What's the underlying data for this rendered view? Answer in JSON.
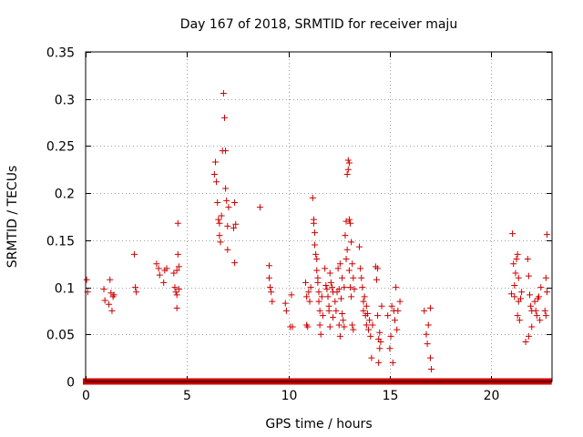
{
  "chart_data": {
    "type": "scatter",
    "title": "Day 167 of 2018, SRMTID for receiver maju",
    "xlabel": "GPS time / hours",
    "ylabel": "SRMTID / TECUs",
    "xlim": [
      0,
      23
    ],
    "ylim": [
      0,
      0.35
    ],
    "x_ticks": [
      0,
      5,
      10,
      15,
      20
    ],
    "x_tick_labels": [
      "0",
      "5",
      "10",
      "15",
      "20"
    ],
    "y_ticks": [
      0,
      0.05,
      0.1,
      0.15,
      0.2,
      0.25,
      0.3,
      0.35
    ],
    "y_tick_labels": [
      "0",
      "0.05",
      "0.1",
      "0.15",
      "0.2",
      "0.25",
      "0.3",
      "0.35"
    ],
    "grid": true,
    "marker": "+",
    "colors": {
      "series": "#cc0000",
      "grid": "#a0a0a0",
      "axis": "#000000"
    },
    "series": [
      {
        "name": "SRMTID",
        "points": [
          [
            0.05,
            0.108
          ],
          [
            0.1,
            0.095
          ],
          [
            0.9,
            0.098
          ],
          [
            0.95,
            0.086
          ],
          [
            1.15,
            0.082
          ],
          [
            1.2,
            0.108
          ],
          [
            1.25,
            0.094
          ],
          [
            1.3,
            0.075
          ],
          [
            1.35,
            0.09
          ],
          [
            1.4,
            0.092
          ],
          [
            2.4,
            0.135
          ],
          [
            2.45,
            0.1
          ],
          [
            2.5,
            0.095
          ],
          [
            3.5,
            0.125
          ],
          [
            3.6,
            0.12
          ],
          [
            3.65,
            0.113
          ],
          [
            3.85,
            0.105
          ],
          [
            3.9,
            0.118
          ],
          [
            4.0,
            0.12
          ],
          [
            4.35,
            0.115
          ],
          [
            4.4,
            0.1
          ],
          [
            4.45,
            0.095
          ],
          [
            4.5,
            0.118
          ],
          [
            4.5,
            0.092
          ],
          [
            4.5,
            0.078
          ],
          [
            4.55,
            0.168
          ],
          [
            4.55,
            0.135
          ],
          [
            4.6,
            0.122
          ],
          [
            4.6,
            0.098
          ],
          [
            6.35,
            0.22
          ],
          [
            6.4,
            0.233
          ],
          [
            6.45,
            0.212
          ],
          [
            6.5,
            0.19
          ],
          [
            6.55,
            0.172
          ],
          [
            6.6,
            0.168
          ],
          [
            6.6,
            0.155
          ],
          [
            6.65,
            0.148
          ],
          [
            6.7,
            0.176
          ],
          [
            6.75,
            0.245
          ],
          [
            6.8,
            0.306
          ],
          [
            6.85,
            0.28
          ],
          [
            6.9,
            0.245
          ],
          [
            6.9,
            0.205
          ],
          [
            6.95,
            0.192
          ],
          [
            7.0,
            0.165
          ],
          [
            7.0,
            0.14
          ],
          [
            7.05,
            0.185
          ],
          [
            7.3,
            0.163
          ],
          [
            7.35,
            0.19
          ],
          [
            7.35,
            0.126
          ],
          [
            7.4,
            0.167
          ],
          [
            8.6,
            0.185
          ],
          [
            9.05,
            0.123
          ],
          [
            9.05,
            0.11
          ],
          [
            9.1,
            0.1
          ],
          [
            9.15,
            0.095
          ],
          [
            9.2,
            0.085
          ],
          [
            9.85,
            0.083
          ],
          [
            9.9,
            0.075
          ],
          [
            10.15,
            0.092
          ],
          [
            10.1,
            0.058
          ],
          [
            10.2,
            0.058
          ],
          [
            10.85,
            0.105
          ],
          [
            10.9,
            0.09
          ],
          [
            10.9,
            0.06
          ],
          [
            10.95,
            0.058
          ],
          [
            11.0,
            0.095
          ],
          [
            11.05,
            0.085
          ],
          [
            11.1,
            0.1
          ],
          [
            11.2,
            0.195
          ],
          [
            11.25,
            0.172
          ],
          [
            11.25,
            0.168
          ],
          [
            11.3,
            0.158
          ],
          [
            11.3,
            0.145
          ],
          [
            11.35,
            0.135
          ],
          [
            11.4,
            0.13
          ],
          [
            11.4,
            0.118
          ],
          [
            11.45,
            0.11
          ],
          [
            11.45,
            0.105
          ],
          [
            11.5,
            0.095
          ],
          [
            11.5,
            0.085
          ],
          [
            11.55,
            0.075
          ],
          [
            11.55,
            0.06
          ],
          [
            11.6,
            0.05
          ],
          [
            11.65,
            0.09
          ],
          [
            11.7,
            0.07
          ],
          [
            11.8,
            0.12
          ],
          [
            11.85,
            0.102
          ],
          [
            11.9,
            0.098
          ],
          [
            11.95,
            0.09
          ],
          [
            12.0,
            0.08
          ],
          [
            12.0,
            0.075
          ],
          [
            12.05,
            0.115
          ],
          [
            12.05,
            0.058
          ],
          [
            12.1,
            0.105
          ],
          [
            12.15,
            0.1
          ],
          [
            12.2,
            0.095
          ],
          [
            12.2,
            0.068
          ],
          [
            12.3,
            0.085
          ],
          [
            12.35,
            0.075
          ],
          [
            12.4,
            0.095
          ],
          [
            12.45,
            0.12
          ],
          [
            12.5,
            0.098
          ],
          [
            12.5,
            0.06
          ],
          [
            12.55,
            0.125
          ],
          [
            12.55,
            0.048
          ],
          [
            12.6,
            0.088
          ],
          [
            12.65,
            0.11
          ],
          [
            12.65,
            0.072
          ],
          [
            12.7,
            0.065
          ],
          [
            12.75,
            0.1
          ],
          [
            12.75,
            0.058
          ],
          [
            12.8,
            0.155
          ],
          [
            12.85,
            0.17
          ],
          [
            12.85,
            0.13
          ],
          [
            12.9,
            0.22
          ],
          [
            12.9,
            0.14
          ],
          [
            12.95,
            0.235
          ],
          [
            12.95,
            0.225
          ],
          [
            13.0,
            0.232
          ],
          [
            13.0,
            0.172
          ],
          [
            13.0,
            0.118
          ],
          [
            13.05,
            0.168
          ],
          [
            13.05,
            0.1
          ],
          [
            13.1,
            0.148
          ],
          [
            13.1,
            0.09
          ],
          [
            13.15,
            0.125
          ],
          [
            13.15,
            0.06
          ],
          [
            13.2,
            0.11
          ],
          [
            13.2,
            0.055
          ],
          [
            13.25,
            0.098
          ],
          [
            13.5,
            0.143
          ],
          [
            13.55,
            0.12
          ],
          [
            13.6,
            0.11
          ],
          [
            13.65,
            0.1
          ],
          [
            13.7,
            0.085
          ],
          [
            13.7,
            0.075
          ],
          [
            13.75,
            0.09
          ],
          [
            13.8,
            0.07
          ],
          [
            13.85,
            0.08
          ],
          [
            13.85,
            0.06
          ],
          [
            13.9,
            0.072
          ],
          [
            13.95,
            0.055
          ],
          [
            14.0,
            0.065
          ],
          [
            14.05,
            0.048
          ],
          [
            14.1,
            0.025
          ],
          [
            14.15,
            0.06
          ],
          [
            14.3,
            0.122
          ],
          [
            14.35,
            0.108
          ],
          [
            14.4,
            0.12
          ],
          [
            14.4,
            0.07
          ],
          [
            14.45,
            0.045
          ],
          [
            14.45,
            0.02
          ],
          [
            14.5,
            0.052
          ],
          [
            14.5,
            0.035
          ],
          [
            14.55,
            0.042
          ],
          [
            14.6,
            0.08
          ],
          [
            14.9,
            0.07
          ],
          [
            15.0,
            0.035
          ],
          [
            15.05,
            0.048
          ],
          [
            15.1,
            0.08
          ],
          [
            15.15,
            0.02
          ],
          [
            15.2,
            0.075
          ],
          [
            15.25,
            0.065
          ],
          [
            15.3,
            0.1
          ],
          [
            15.35,
            0.055
          ],
          [
            15.4,
            0.075
          ],
          [
            15.5,
            0.085
          ],
          [
            16.7,
            0.075
          ],
          [
            16.8,
            0.05
          ],
          [
            16.85,
            0.04
          ],
          [
            16.9,
            0.06
          ],
          [
            17.0,
            0.078
          ],
          [
            17.0,
            0.025
          ],
          [
            17.05,
            0.013
          ],
          [
            21.0,
            0.093
          ],
          [
            21.05,
            0.157
          ],
          [
            21.1,
            0.125
          ],
          [
            21.15,
            0.102
          ],
          [
            21.15,
            0.09
          ],
          [
            21.2,
            0.115
          ],
          [
            21.25,
            0.13
          ],
          [
            21.3,
            0.135
          ],
          [
            21.3,
            0.07
          ],
          [
            21.35,
            0.11
          ],
          [
            21.35,
            0.085
          ],
          [
            21.4,
            0.065
          ],
          [
            21.45,
            0.088
          ],
          [
            21.5,
            0.095
          ],
          [
            21.7,
            0.042
          ],
          [
            21.8,
            0.13
          ],
          [
            21.85,
            0.112
          ],
          [
            21.85,
            0.048
          ],
          [
            21.9,
            0.092
          ],
          [
            21.95,
            0.08
          ],
          [
            22.0,
            0.075
          ],
          [
            22.0,
            0.058
          ],
          [
            22.15,
            0.085
          ],
          [
            22.2,
            0.075
          ],
          [
            22.25,
            0.07
          ],
          [
            22.3,
            0.088
          ],
          [
            22.35,
            0.09
          ],
          [
            22.4,
            0.065
          ],
          [
            22.45,
            0.1
          ],
          [
            22.65,
            0.075
          ],
          [
            22.7,
            0.11
          ],
          [
            22.7,
            0.07
          ],
          [
            22.75,
            0.156
          ],
          [
            22.75,
            0.095
          ]
        ],
        "zero_segments": [
          [
            0,
            9.85
          ],
          [
            10.1,
            16.65
          ],
          [
            16.85,
            20.95
          ],
          [
            21.05,
            22.85
          ]
        ]
      }
    ]
  }
}
